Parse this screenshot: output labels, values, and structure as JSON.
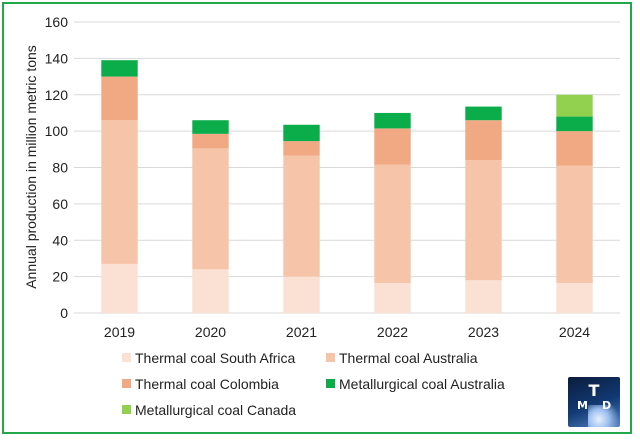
{
  "chart_data": {
    "type": "bar",
    "stacked": true,
    "categories": [
      "2019",
      "2020",
      "2021",
      "2022",
      "2023",
      "2024"
    ],
    "series": [
      {
        "name": "Thermal coal South Africa",
        "color": "#fbe1d4",
        "values": [
          27,
          24,
          20,
          16.5,
          18,
          16.5
        ]
      },
      {
        "name": "Thermal coal Australia",
        "color": "#f6c5a9",
        "values": [
          79,
          66.5,
          66.5,
          65,
          66,
          64.5
        ]
      },
      {
        "name": "Thermal coal Colombia",
        "color": "#f1a983",
        "values": [
          24,
          8,
          8,
          20,
          22,
          19
        ]
      },
      {
        "name": "Metallurgical coal Australia",
        "color": "#0bad4a",
        "values": [
          9,
          7.5,
          9,
          8.5,
          7.5,
          8
        ]
      },
      {
        "name": "Metallurgical coal Canada",
        "color": "#92d050",
        "values": [
          0,
          0,
          0,
          0,
          0,
          12
        ]
      }
    ],
    "ylabel": "Annual production in million metric tons",
    "xlabel": "",
    "ylim": [
      0,
      160
    ],
    "yticks": [
      0,
      20,
      40,
      60,
      80,
      100,
      120,
      140,
      160
    ],
    "grid": true,
    "legend_position": "bottom"
  },
  "logo": {
    "top": "T",
    "left": "M",
    "right": "D"
  }
}
